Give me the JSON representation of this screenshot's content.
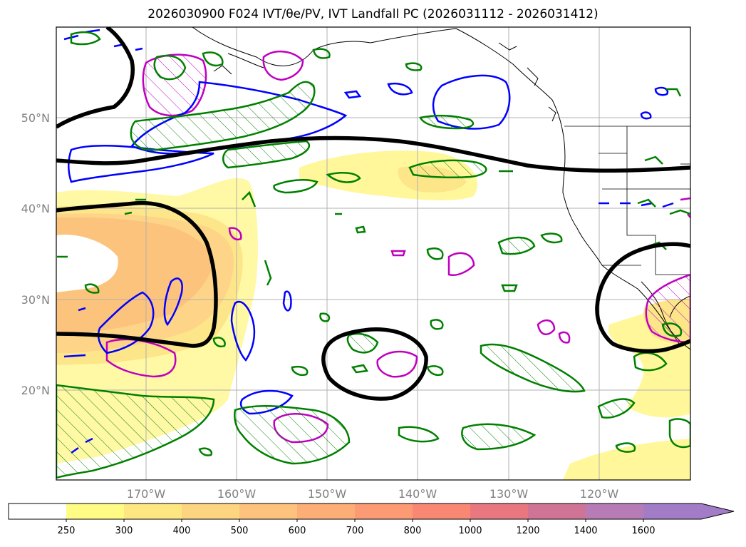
{
  "title": "2026030900 F024 IVT/θe/PV, IVT Landfall PC (2026031112 - 2026031412)",
  "map": {
    "lat_labels": [
      "50°N",
      "40°N",
      "30°N",
      "20°N"
    ],
    "lon_labels": [
      "170°W",
      "160°W",
      "150°W",
      "140°W",
      "130°W",
      "120°W"
    ],
    "colors": {
      "land_outline": "#000000",
      "grid": "#b0b0b0",
      "pv_contour": "#0000ff",
      "theta_e_contour": "#008000",
      "landfall_contour": "#bf00bf",
      "thick_contour": "#000000",
      "ivt_250": "#fff79a",
      "ivt_300": "#fde68a",
      "ivt_400": "#fdd488",
      "ivt_500": "#fcc07a"
    }
  },
  "colorbar": {
    "ticks": [
      "250",
      "300",
      "400",
      "500",
      "600",
      "700",
      "800",
      "1000",
      "1200",
      "1400",
      "1600"
    ],
    "colors": [
      "#ffffff",
      "#fffb85",
      "#fee781",
      "#fdd581",
      "#fdc27b",
      "#fdae76",
      "#fc9a73",
      "#f88874",
      "#e9777f",
      "#cf7495",
      "#b77cb5",
      "#a27cc7"
    ]
  }
}
